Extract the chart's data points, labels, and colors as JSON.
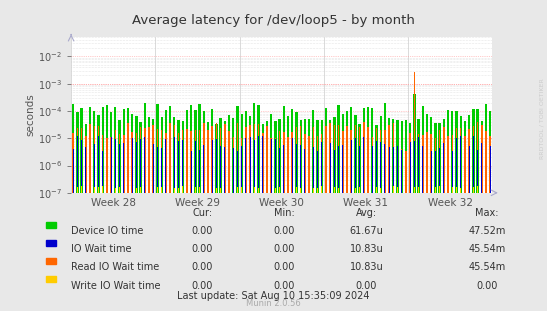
{
  "title": "Average latency for /dev/loop5 - by month",
  "ylabel": "seconds",
  "watermark": "RRDTOOL / TOBI OETIKER",
  "munin_version": "Munin 2.0.56",
  "background_color": "#e8e8e8",
  "plot_background_color": "#ffffff",
  "grid_color_minor": "#d0d0d0",
  "grid_color_major_x": "#cccccc",
  "grid_color_red": "#ff9999",
  "ylim_min": 1e-07,
  "ylim_max": 0.01,
  "week_labels": [
    "Week 28",
    "Week 29",
    "Week 30",
    "Week 31",
    "Week 32"
  ],
  "series": [
    {
      "label": "Device IO time",
      "color": "#00cc00"
    },
    {
      "label": "IO Wait time",
      "color": "#0000cc"
    },
    {
      "label": "Read IO Wait time",
      "color": "#ff6600"
    },
    {
      "label": "Write IO Wait time",
      "color": "#ffcc00"
    }
  ],
  "legend_headers": [
    "Cur:",
    "Min:",
    "Avg:",
    "Max:"
  ],
  "legend_rows": [
    [
      "Device IO time",
      "0.00",
      "0.00",
      "61.67u",
      "47.52m"
    ],
    [
      "IO Wait time",
      "0.00",
      "0.00",
      "10.83u",
      "45.54m"
    ],
    [
      "Read IO Wait time",
      "0.00",
      "0.00",
      "10.83u",
      "45.54m"
    ],
    [
      "Write IO Wait time",
      "0.00",
      "0.00",
      "0.00",
      "0.00"
    ]
  ],
  "last_update": "Last update: Sat Aug 10 15:35:09 2024",
  "n_bars_per_week": 20,
  "n_weeks": 5,
  "seed": 12345
}
